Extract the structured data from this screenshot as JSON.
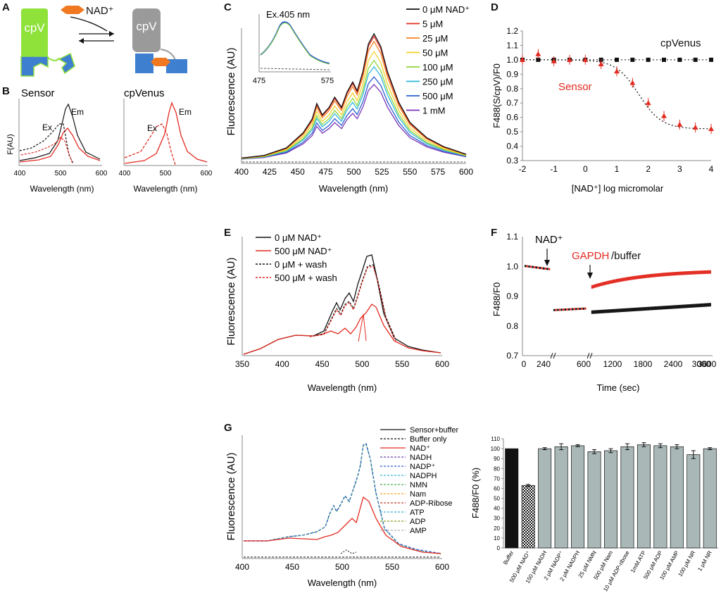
{
  "colors": {
    "red": "#e32a20",
    "black": "#111111",
    "green": "#8fe23a",
    "gray": "#9a9a9a",
    "blue": "#3f7fd0",
    "orange": "#f07820",
    "bar_gray": "#a9b7b7"
  },
  "panel_labels": {
    "a": "A",
    "b": "B",
    "c": "C",
    "d": "D",
    "e": "E",
    "f": "F",
    "g": "G"
  },
  "panel_a": {
    "cpv": "cpV",
    "cpv2": "cpV",
    "nad": "NAD⁺"
  },
  "chart_data": [
    {
      "id": "B1",
      "type": "line",
      "title": "Sensor",
      "xlabel": "Wavelength (nm)",
      "ylabel": "F(AU)",
      "xlim": [
        400,
        600
      ],
      "xticks": [
        400,
        500,
        600
      ],
      "annotations": [
        "Ex",
        "Em"
      ],
      "series": [
        {
          "name": "Em black"
        },
        {
          "name": "Em red"
        },
        {
          "name": "Ex black"
        },
        {
          "name": "Ex red"
        }
      ]
    },
    {
      "id": "B2",
      "type": "line",
      "title": "cpVenus",
      "xlabel": "Wavelength (nm)",
      "xlim": [
        400,
        600
      ],
      "xticks": [
        400,
        500,
        600
      ],
      "annotations": [
        "Ex",
        "Em"
      ],
      "series": [
        {
          "name": "Em"
        },
        {
          "name": "Ex"
        }
      ]
    },
    {
      "id": "C",
      "type": "line",
      "xlabel": "Wavelength (nm)",
      "ylabel": "Fluorescence (AU)",
      "xlim": [
        400,
        600
      ],
      "xticks": [
        400,
        425,
        450,
        475,
        500,
        525,
        550,
        575,
        600
      ],
      "series": [
        {
          "name": "0 μM NAD⁺",
          "color": "#111111",
          "peak": 1.0
        },
        {
          "name": "5 μM",
          "color": "#e22b1e",
          "peak": 0.98
        },
        {
          "name": "25 μM",
          "color": "#f58220",
          "peak": 0.94
        },
        {
          "name": "50 μM",
          "color": "#f5d22a",
          "peak": 0.86
        },
        {
          "name": "100 μM",
          "color": "#8fd63a",
          "peak": 0.79
        },
        {
          "name": "250 μM",
          "color": "#2fb9d6",
          "peak": 0.74
        },
        {
          "name": "500 μM",
          "color": "#2d5fd0",
          "peak": 0.66
        },
        {
          "name": "1 mM",
          "color": "#7b36b8",
          "peak": 0.6
        }
      ],
      "inset": {
        "title": "Ex.405 nm",
        "xlim": [
          475,
          575
        ],
        "xticks": [
          475,
          575
        ]
      }
    },
    {
      "id": "D",
      "type": "scatter",
      "xlabel": "[NAD⁺] log micromolar",
      "ylabel": "F488(S/cpV)/F0",
      "xlim": [
        -2,
        4
      ],
      "ylim": [
        0.3,
        1.2
      ],
      "xticks": [
        -2,
        -1.5,
        -1,
        -0.5,
        0,
        0.5,
        1,
        1.5,
        2,
        2.5,
        3,
        3.5,
        4
      ],
      "yticks": [
        0.3,
        0.4,
        0.5,
        0.6,
        0.7,
        0.8,
        0.9,
        1.0,
        1.1,
        1.2
      ],
      "series": [
        {
          "name": "cpVenus",
          "color": "#111111",
          "x": [
            -2,
            -1.5,
            -1,
            -0.5,
            0,
            0.5,
            1,
            1.5,
            2,
            2.5,
            3,
            3.5,
            4
          ],
          "y": [
            1.0,
            1.0,
            1.0,
            1.0,
            1.0,
            1.0,
            1.0,
            1.0,
            1.0,
            1.0,
            1.0,
            1.0,
            1.0
          ]
        },
        {
          "name": "Sensor",
          "color": "#e32a20",
          "x": [
            -2,
            -1.5,
            -1,
            -0.5,
            0,
            0.5,
            1,
            1.5,
            2,
            2.5,
            3,
            3.5,
            4
          ],
          "y": [
            1.0,
            1.04,
            0.99,
            1.0,
            1.0,
            0.97,
            0.92,
            0.84,
            0.7,
            0.61,
            0.55,
            0.53,
            0.52
          ]
        }
      ]
    },
    {
      "id": "E",
      "type": "line",
      "xlabel": "Wavelength (nm)",
      "ylabel": "Fluorescence (AU)",
      "xlim": [
        350,
        600
      ],
      "xticks": [
        350,
        400,
        450,
        500,
        550,
        600
      ],
      "series": [
        {
          "name": "0 μM NAD⁺",
          "style": "solid",
          "color": "#111111"
        },
        {
          "name": "500 μM NAD⁺",
          "style": "solid",
          "color": "#e32a20"
        },
        {
          "name": "0 μM + wash",
          "style": "dashed",
          "color": "#111111"
        },
        {
          "name": "500 μM + wash",
          "style": "dashed",
          "color": "#e32a20"
        }
      ]
    },
    {
      "id": "F",
      "type": "scatter",
      "xlabel": "Time (sec)",
      "ylabel": "F488/F0",
      "ylim": [
        0.7,
        1.1
      ],
      "yticks": [
        0.7,
        0.8,
        0.9,
        1.0,
        1.1
      ],
      "xticks": [
        0,
        240,
        600,
        1200,
        1800,
        2400,
        3000,
        3600
      ],
      "annotations": [
        "NAD⁺",
        "GAPDH",
        "/buffer"
      ],
      "series": [
        {
          "name": "GAPDH",
          "color": "#e32a20",
          "start": 0.93,
          "end": 0.98
        },
        {
          "name": "buffer",
          "color": "#111111",
          "start": 0.845,
          "end": 0.87
        }
      ]
    },
    {
      "id": "G1",
      "type": "line",
      "xlabel": "Wavelength (nm)",
      "ylabel": "Fluorescence (AU)",
      "xlim": [
        400,
        600
      ],
      "xticks": [
        400,
        450,
        500,
        550,
        600
      ],
      "series": [
        {
          "name": "Sensor+buffer",
          "color": "#111111",
          "style": "solid"
        },
        {
          "name": "Buffer only",
          "color": "#111111",
          "style": "dashed"
        },
        {
          "name": "NAD⁺",
          "color": "#e32a20",
          "style": "solid"
        },
        {
          "name": "NADH",
          "color": "#6a3fb0",
          "style": "dashed"
        },
        {
          "name": "NADP⁺",
          "color": "#2d5fd0",
          "style": "dashed"
        },
        {
          "name": "NADPH",
          "color": "#2fb9d6",
          "style": "dashed"
        },
        {
          "name": "NMN",
          "color": "#4caf50",
          "style": "dashed"
        },
        {
          "name": "Nam",
          "color": "#f5a623",
          "style": "dashed"
        },
        {
          "name": "ADP-Ribose",
          "color": "#c0392b",
          "style": "dashed"
        },
        {
          "name": "ATP",
          "color": "#34b0d8",
          "style": "dashed"
        },
        {
          "name": "ADP",
          "color": "#8a9a20",
          "style": "dashed"
        },
        {
          "name": "AMP",
          "color": "#b0b0b0",
          "style": "dashed"
        }
      ]
    },
    {
      "id": "G2",
      "type": "bar",
      "ylabel": "F488/F0 (%)",
      "ylim": [
        0,
        110
      ],
      "yticks": [
        0,
        10,
        20,
        30,
        40,
        50,
        60,
        70,
        80,
        90,
        100,
        110
      ],
      "categories": [
        "Buffer",
        "500 μM NAD⁺",
        "150 μM NADH",
        "2 μM NADP⁺",
        "2 μM NADPH",
        "25 μM NMN",
        "500 μM Nam",
        "10 μM ADP-ribose",
        "1mM ATP",
        "500 μM ADP",
        "100 μM AMP",
        "100 μM NR",
        "1 μM NR"
      ],
      "values": [
        100,
        63,
        100,
        102,
        103,
        97,
        98,
        102,
        104,
        103,
        102,
        94,
        100
      ],
      "errors": [
        0,
        1,
        1,
        3,
        1,
        2,
        2,
        3,
        2,
        2,
        2,
        4,
        1
      ]
    }
  ]
}
